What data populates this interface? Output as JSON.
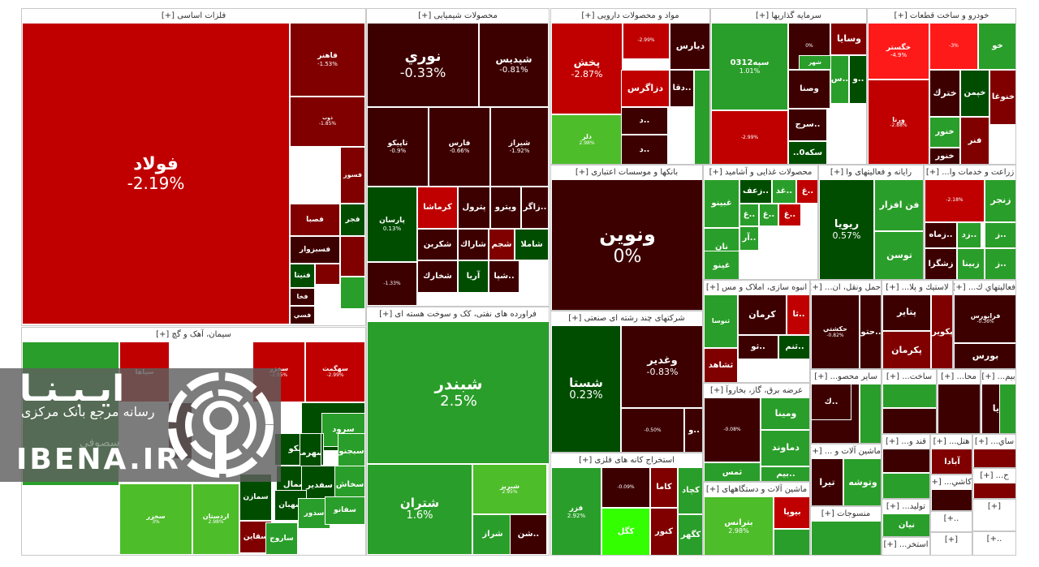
{
  "colors": {
    "dr": "#800000",
    "dr2": "#5c0000",
    "dr3": "#3d0000",
    "r": "#c00000",
    "r2": "#e0191a",
    "rb": "#ff1a1a",
    "dg": "#004d00",
    "dg2": "#0b6b0b",
    "g": "#2a9e2a",
    "g2": "#33aa33",
    "lg": "#4dbd2a",
    "bg": "#33ff00"
  },
  "watermark": {
    "title": "ايـبـنـا",
    "subtitle": "رسانه مرجع بانک مرکزی",
    "site": "IBENA.IR",
    "ghost": "سصوفي"
  },
  "sectors": [
    {
      "title": "فلزات اساسی [+]",
      "tiles": [
        {
          "n": "فولاد",
          "p": "-2.19%",
          "c": "r"
        },
        {
          "n": "فاهنر",
          "p": "-1.53%",
          "c": "dr"
        },
        {
          "n": "ذوب",
          "p": "-1.85%",
          "c": "dr"
        },
        {
          "n": "فسوز",
          "p": "",
          "c": "dr"
        },
        {
          "n": "فجر",
          "p": "",
          "c": "dg"
        },
        {
          "n": "فصبا",
          "p": "",
          "c": "dr"
        },
        {
          "n": "فسبزوار",
          "p": "",
          "c": "dr3"
        },
        {
          "n": "فنيتا",
          "p": "",
          "c": "dg"
        },
        {
          "n": "فخا",
          "p": "",
          "c": "dr3"
        },
        {
          "n": "",
          "p": "",
          "c": "dr"
        },
        {
          "n": "",
          "p": "",
          "c": "dr"
        },
        {
          "n": "فسي",
          "p": "",
          "c": "dr3"
        },
        {
          "n": "",
          "p": "",
          "c": "g"
        }
      ]
    },
    {
      "title": "سیمان، آهک و گچ [+]",
      "tiles": [
        {
          "n": "",
          "p": "",
          "c": "g"
        },
        {
          "n": "سپاها",
          "p": "",
          "c": "r"
        },
        {
          "n": "سخزر",
          "p": "3%",
          "c": "lg"
        },
        {
          "n": "سخزر",
          "p": "-2.95%",
          "c": "r"
        },
        {
          "n": "سهگمت",
          "p": "-2.99%",
          "c": "r"
        },
        {
          "n": "ساوه",
          "p": "",
          "c": "dg"
        },
        {
          "n": "سرود",
          "p": "",
          "c": "g"
        },
        {
          "n": "سيكو",
          "p": "",
          "c": "dg"
        },
        {
          "n": "سهرمز",
          "p": "",
          "c": "dg"
        },
        {
          "n": "سبجنو",
          "p": "",
          "c": "g"
        },
        {
          "n": "سشمال",
          "p": "",
          "c": "dg"
        },
        {
          "n": "سفدير",
          "p": "",
          "c": "dg"
        },
        {
          "n": "سخاش",
          "p": "",
          "c": "g"
        },
        {
          "n": "سمازن",
          "p": "",
          "c": "dg"
        },
        {
          "n": "سهبان",
          "p": "",
          "c": "dg"
        },
        {
          "n": "سدور",
          "p": "",
          "c": "g"
        },
        {
          "n": "سفانو",
          "p": "",
          "c": "g"
        },
        {
          "n": "سقاين",
          "p": "",
          "c": "dr"
        },
        {
          "n": "ساروج",
          "p": "",
          "c": "g"
        },
        {
          "n": "اردستان",
          "p": "2.98%",
          "c": "lg"
        },
        {
          "n": "",
          "p": "",
          "c": "dr3"
        }
      ]
    },
    {
      "title": "محصولات شیمیایی [+]",
      "tiles": [
        {
          "n": "نوري",
          "p": "-0.33%",
          "c": "dr3"
        },
        {
          "n": "شپديس",
          "p": "-0.81%",
          "c": "dr3"
        },
        {
          "n": "تاپيكو",
          "p": "-0.9%",
          "c": "dr3"
        },
        {
          "n": "فارس",
          "p": "-0.66%",
          "c": "dr3"
        },
        {
          "n": "شيراز",
          "p": "-1.92%",
          "c": "dr3"
        },
        {
          "n": "پارسان",
          "p": "0.13%",
          "c": "dg"
        },
        {
          "n": "كرماشا",
          "p": "",
          "c": "r"
        },
        {
          "n": "پترول",
          "p": "",
          "c": "dr3"
        },
        {
          "n": "ويترو",
          "p": "",
          "c": "dr3"
        },
        {
          "n": "..زاگر",
          "p": "",
          "c": "dr3"
        },
        {
          "n": "شكربن",
          "p": "",
          "c": "dr3"
        },
        {
          "n": "شاراك",
          "p": "",
          "c": "dr3"
        },
        {
          "n": "شجم",
          "p": "",
          "c": "dr"
        },
        {
          "n": "شاملا",
          "p": "",
          "c": "dg"
        },
        {
          "n": "آريا",
          "p": "",
          "c": "dg"
        },
        {
          "n": "شخارك",
          "p": "",
          "c": "dr3"
        },
        {
          "n": "..شپا",
          "p": "",
          "c": "dr3"
        },
        {
          "n": "",
          "p": "-1.33%",
          "c": "dr3"
        }
      ]
    },
    {
      "title": "فراورده های نفتی، کک و سوخت هسته ای [+]",
      "tiles": [
        {
          "n": "شبندر",
          "p": "2.5%",
          "c": "g"
        },
        {
          "n": "شتران",
          "p": "1.6%",
          "c": "g"
        },
        {
          "n": "شبريز",
          "p": "2.95%",
          "c": "lg"
        },
        {
          "n": "شراز",
          "p": "",
          "c": "g"
        },
        {
          "n": "..شن",
          "p": "",
          "c": "dr3"
        }
      ]
    },
    {
      "title": "مواد و محصولات دارویی [+]",
      "tiles": [
        {
          "n": "پخش",
          "p": "-2.87%",
          "c": "r"
        },
        {
          "n": "دلر",
          "p": "2.98%",
          "c": "lg"
        },
        {
          "n": "ديارس",
          "p": "",
          "c": "dr3"
        },
        {
          "n": "دزاگرس",
          "p": "",
          "c": "r"
        },
        {
          "n": "",
          "p": "-2.99%",
          "c": "r"
        },
        {
          "n": "..د",
          "p": "",
          "c": "dr3"
        },
        {
          "n": "..دقا",
          "p": "",
          "c": "dr3"
        },
        {
          "n": "..د",
          "p": "",
          "c": "dr3"
        },
        {
          "n": "",
          "p": "",
          "c": "g"
        }
      ]
    },
    {
      "title": "بانکها و موسسات اعتباری [+]",
      "tiles": [
        {
          "n": "ونوين",
          "p": "0%",
          "c": "dr3"
        }
      ]
    },
    {
      "title": "شرکتهای چند رشته ای صنعتی [+]",
      "tiles": [
        {
          "n": "شستا",
          "p": "0.23%",
          "c": "dg"
        },
        {
          "n": "وغدير",
          "p": "-0.83%",
          "c": "dr3"
        },
        {
          "n": "",
          "p": "-0.50%",
          "c": "dr3"
        },
        {
          "n": "..و",
          "p": "",
          "c": "dr3"
        }
      ]
    },
    {
      "title": "استخراج کانه های فلزی [+]",
      "tiles": [
        {
          "n": "فزر",
          "p": "2.92%",
          "c": "g"
        },
        {
          "n": "",
          "p": "-0.09%",
          "c": "dr3"
        },
        {
          "n": "كاما",
          "p": "",
          "c": "dr"
        },
        {
          "n": "كچاد",
          "p": "",
          "c": "g"
        },
        {
          "n": "كنور",
          "p": "",
          "c": "dr"
        },
        {
          "n": "كگهر",
          "p": "",
          "c": "g"
        },
        {
          "n": "كگل",
          "p": "",
          "c": "bg"
        }
      ]
    },
    {
      "title": "سرمایه گذاریها [+]",
      "tiles": [
        {
          "n": "سپه0312",
          "p": "1.01%",
          "c": "g"
        },
        {
          "n": "",
          "p": "-2.99%",
          "c": "r"
        },
        {
          "n": "",
          "p": "0%",
          "c": "dr3"
        },
        {
          "n": "وسايا",
          "p": "",
          "c": "dr"
        },
        {
          "n": "وصنا",
          "p": "",
          "c": "dr3"
        },
        {
          "n": "شهر",
          "p": "",
          "c": "g"
        },
        {
          "n": "..س",
          "p": "",
          "c": "g"
        },
        {
          "n": "..و",
          "p": "",
          "c": "dg"
        },
        {
          "n": "..سرج",
          "p": "",
          "c": "dr3"
        },
        {
          "n": "سكه0..",
          "p": "",
          "c": "dg"
        }
      ]
    },
    {
      "title": "خودرو و ساخت قطعات [+]",
      "tiles": [
        {
          "n": "خگستر",
          "p": "-4.9%",
          "c": "rb"
        },
        {
          "n": "",
          "p": "-3%",
          "c": "rb"
        },
        {
          "n": "خو",
          "p": "",
          "c": "g"
        },
        {
          "n": "خترك",
          "p": "",
          "c": "dr3"
        },
        {
          "n": "خپمن",
          "p": "",
          "c": "dg"
        },
        {
          "n": "خنوغا",
          "p": "",
          "c": "dr"
        },
        {
          "n": "خنور",
          "p": "",
          "c": "g"
        },
        {
          "n": "ورنا",
          "p": "-2.88%",
          "c": "r"
        },
        {
          "n": "خنور",
          "p": "",
          "c": "dr3"
        },
        {
          "n": "فنر",
          "p": "",
          "c": "dr"
        }
      ]
    },
    {
      "title": "محصولات غذایی و آشامید [+]",
      "tiles": [
        {
          "n": "غبينو",
          "p": "",
          "c": "g"
        },
        {
          "n": "..زعف",
          "p": "",
          "c": "dg"
        },
        {
          "n": "..غد",
          "p": "",
          "c": "g"
        },
        {
          "n": "..غ",
          "p": "",
          "c": "r"
        },
        {
          "n": "نان",
          "p": "",
          "c": "g"
        },
        {
          "n": "..غ",
          "p": "",
          "c": "g"
        },
        {
          "n": "..غ",
          "p": "",
          "c": "g"
        },
        {
          "n": "..غ",
          "p": "",
          "c": "r"
        },
        {
          "n": "..آر",
          "p": "",
          "c": "g"
        },
        {
          "n": "غينو",
          "p": "",
          "c": "g"
        }
      ]
    },
    {
      "title": "رایانه و فعالیتهای وا [+]",
      "tiles": [
        {
          "n": "ريويا",
          "p": "0.57%",
          "c": "dg"
        },
        {
          "n": "فن افزار",
          "p": "",
          "c": "g"
        },
        {
          "n": "توسن",
          "p": "",
          "c": "g"
        }
      ]
    },
    {
      "title": "زراعت و خدمات وا... [+]",
      "tiles": [
        {
          "n": "",
          "p": "-2.18%",
          "c": "r"
        },
        {
          "n": "زنجر",
          "p": "",
          "c": "g"
        },
        {
          "n": "..زماه",
          "p": "",
          "c": "dr3"
        },
        {
          "n": "..زد",
          "p": "",
          "c": "g"
        },
        {
          "n": "..ز",
          "p": "",
          "c": "g"
        },
        {
          "n": "زشگزا",
          "p": "",
          "c": "dr3"
        },
        {
          "n": "زبينا",
          "p": "",
          "c": "g"
        },
        {
          "n": "..ز",
          "p": "",
          "c": "g"
        }
      ]
    },
    {
      "title": "انبوه سازی، املاک و مس [+]",
      "tiles": [
        {
          "n": "ثنوسا",
          "p": "",
          "c": "g"
        },
        {
          "n": "كرمان",
          "p": "",
          "c": "dr3"
        },
        {
          "n": "..ثا",
          "p": "",
          "c": "r"
        },
        {
          "n": "..ثو",
          "p": "",
          "c": "dr3"
        },
        {
          "n": "..ثنم",
          "p": "",
          "c": "dg"
        },
        {
          "n": "ثشاهد",
          "p": "",
          "c": "dr"
        }
      ]
    },
    {
      "title": "حمل ونقل، ان... [+]",
      "tiles": [
        {
          "n": "حكشتي",
          "p": "-0.82%",
          "c": "dr3"
        },
        {
          "n": "..حتو",
          "p": "",
          "c": "dr3"
        }
      ]
    },
    {
      "title": "لاستيك و پلا... [+]",
      "tiles": [
        {
          "n": "پتاير",
          "p": "",
          "c": "dr3"
        },
        {
          "n": "پكوير",
          "p": "",
          "c": "dr"
        },
        {
          "n": "پكرمان",
          "p": "",
          "c": "dr"
        }
      ]
    },
    {
      "title": "فعاليتهاي ك... [+]",
      "tiles": [
        {
          "n": "فرابورس",
          "p": "-0.36%",
          "c": "dr3"
        },
        {
          "n": "بورس",
          "p": "",
          "c": "dr3"
        }
      ]
    },
    {
      "title": "عرضه برق، گاز، بخاروآ [+]",
      "tiles": [
        {
          "n": "",
          "p": "-0.08%",
          "c": "dr3"
        },
        {
          "n": "ومينا",
          "p": "",
          "c": "g"
        },
        {
          "n": "دماوند",
          "p": "",
          "c": "g"
        },
        {
          "n": "..بيم",
          "p": "",
          "c": "g"
        },
        {
          "n": "ثمس",
          "p": "",
          "c": "g"
        }
      ]
    },
    {
      "title": "ماشین آلات و دستگاههای [+]",
      "tiles": [
        {
          "n": "بترانس",
          "p": "2.98%",
          "c": "lg"
        },
        {
          "n": "بيوپا",
          "p": "",
          "c": "r"
        },
        {
          "n": "",
          "p": "",
          "c": "g"
        }
      ]
    },
    {
      "title": "سایر محصو... [+]",
      "tiles": [
        {
          "n": "..كپ",
          "p": "",
          "c": "dr3"
        },
        {
          "n": "..ك",
          "p": "",
          "c": "dr3"
        },
        {
          "n": "",
          "p": "",
          "c": "g"
        }
      ]
    },
    {
      "title": "ماشین آلات و ... [+]",
      "tiles": [
        {
          "n": "تيرا",
          "p": "",
          "c": "dr3"
        },
        {
          "n": "وتوشه",
          "p": "",
          "c": "g"
        }
      ]
    },
    {
      "title": "منسوجات [+]",
      "tiles": [
        {
          "n": "",
          "p": "",
          "c": "g"
        }
      ]
    },
    {
      "title": "ساخت... [+]",
      "tiles": [
        {
          "n": "",
          "p": "",
          "c": "g"
        },
        {
          "n": "",
          "p": "",
          "c": "dr3"
        }
      ]
    },
    {
      "title": "محا... [+]",
      "tiles": [
        {
          "n": "",
          "p": "",
          "c": "dr3"
        }
      ]
    },
    {
      "title": "بيم... [+]",
      "tiles": [
        {
          "n": "..يا",
          "p": "",
          "c": "dr3"
        },
        {
          "n": "",
          "p": "",
          "c": "g"
        }
      ]
    },
    {
      "title": "قند و... [+]",
      "tiles": [
        {
          "n": "",
          "p": "",
          "c": "dr3"
        },
        {
          "n": "",
          "p": "",
          "c": "g"
        }
      ]
    },
    {
      "title": "هتل... [+]",
      "tiles": [
        {
          "n": "آبادا",
          "p": "",
          "c": "dr"
        }
      ]
    },
    {
      "title": "ساي... [+]",
      "tiles": [
        {
          "n": "",
          "p": "",
          "c": "dr"
        }
      ]
    },
    {
      "title": "توليد... [+]",
      "tiles": [
        {
          "n": "نيان",
          "p": "",
          "c": "g"
        }
      ]
    },
    {
      "title": "كاشي... [+]",
      "tiles": [
        {
          "n": "",
          "p": "",
          "c": "dr3"
        }
      ]
    },
    {
      "title": "ح... [+]",
      "tiles": [
        {
          "n": "",
          "p": "",
          "c": "dr"
        }
      ]
    },
    {
      "title": "استخر... [+]",
      "tiles": []
    },
    {
      "title": "..+]",
      "tiles": []
    },
    {
      "title": "[+]",
      "tiles": []
    },
    {
      "title": "[+]",
      "tiles": []
    },
    {
      "title": "..+]",
      "tiles": []
    }
  ]
}
